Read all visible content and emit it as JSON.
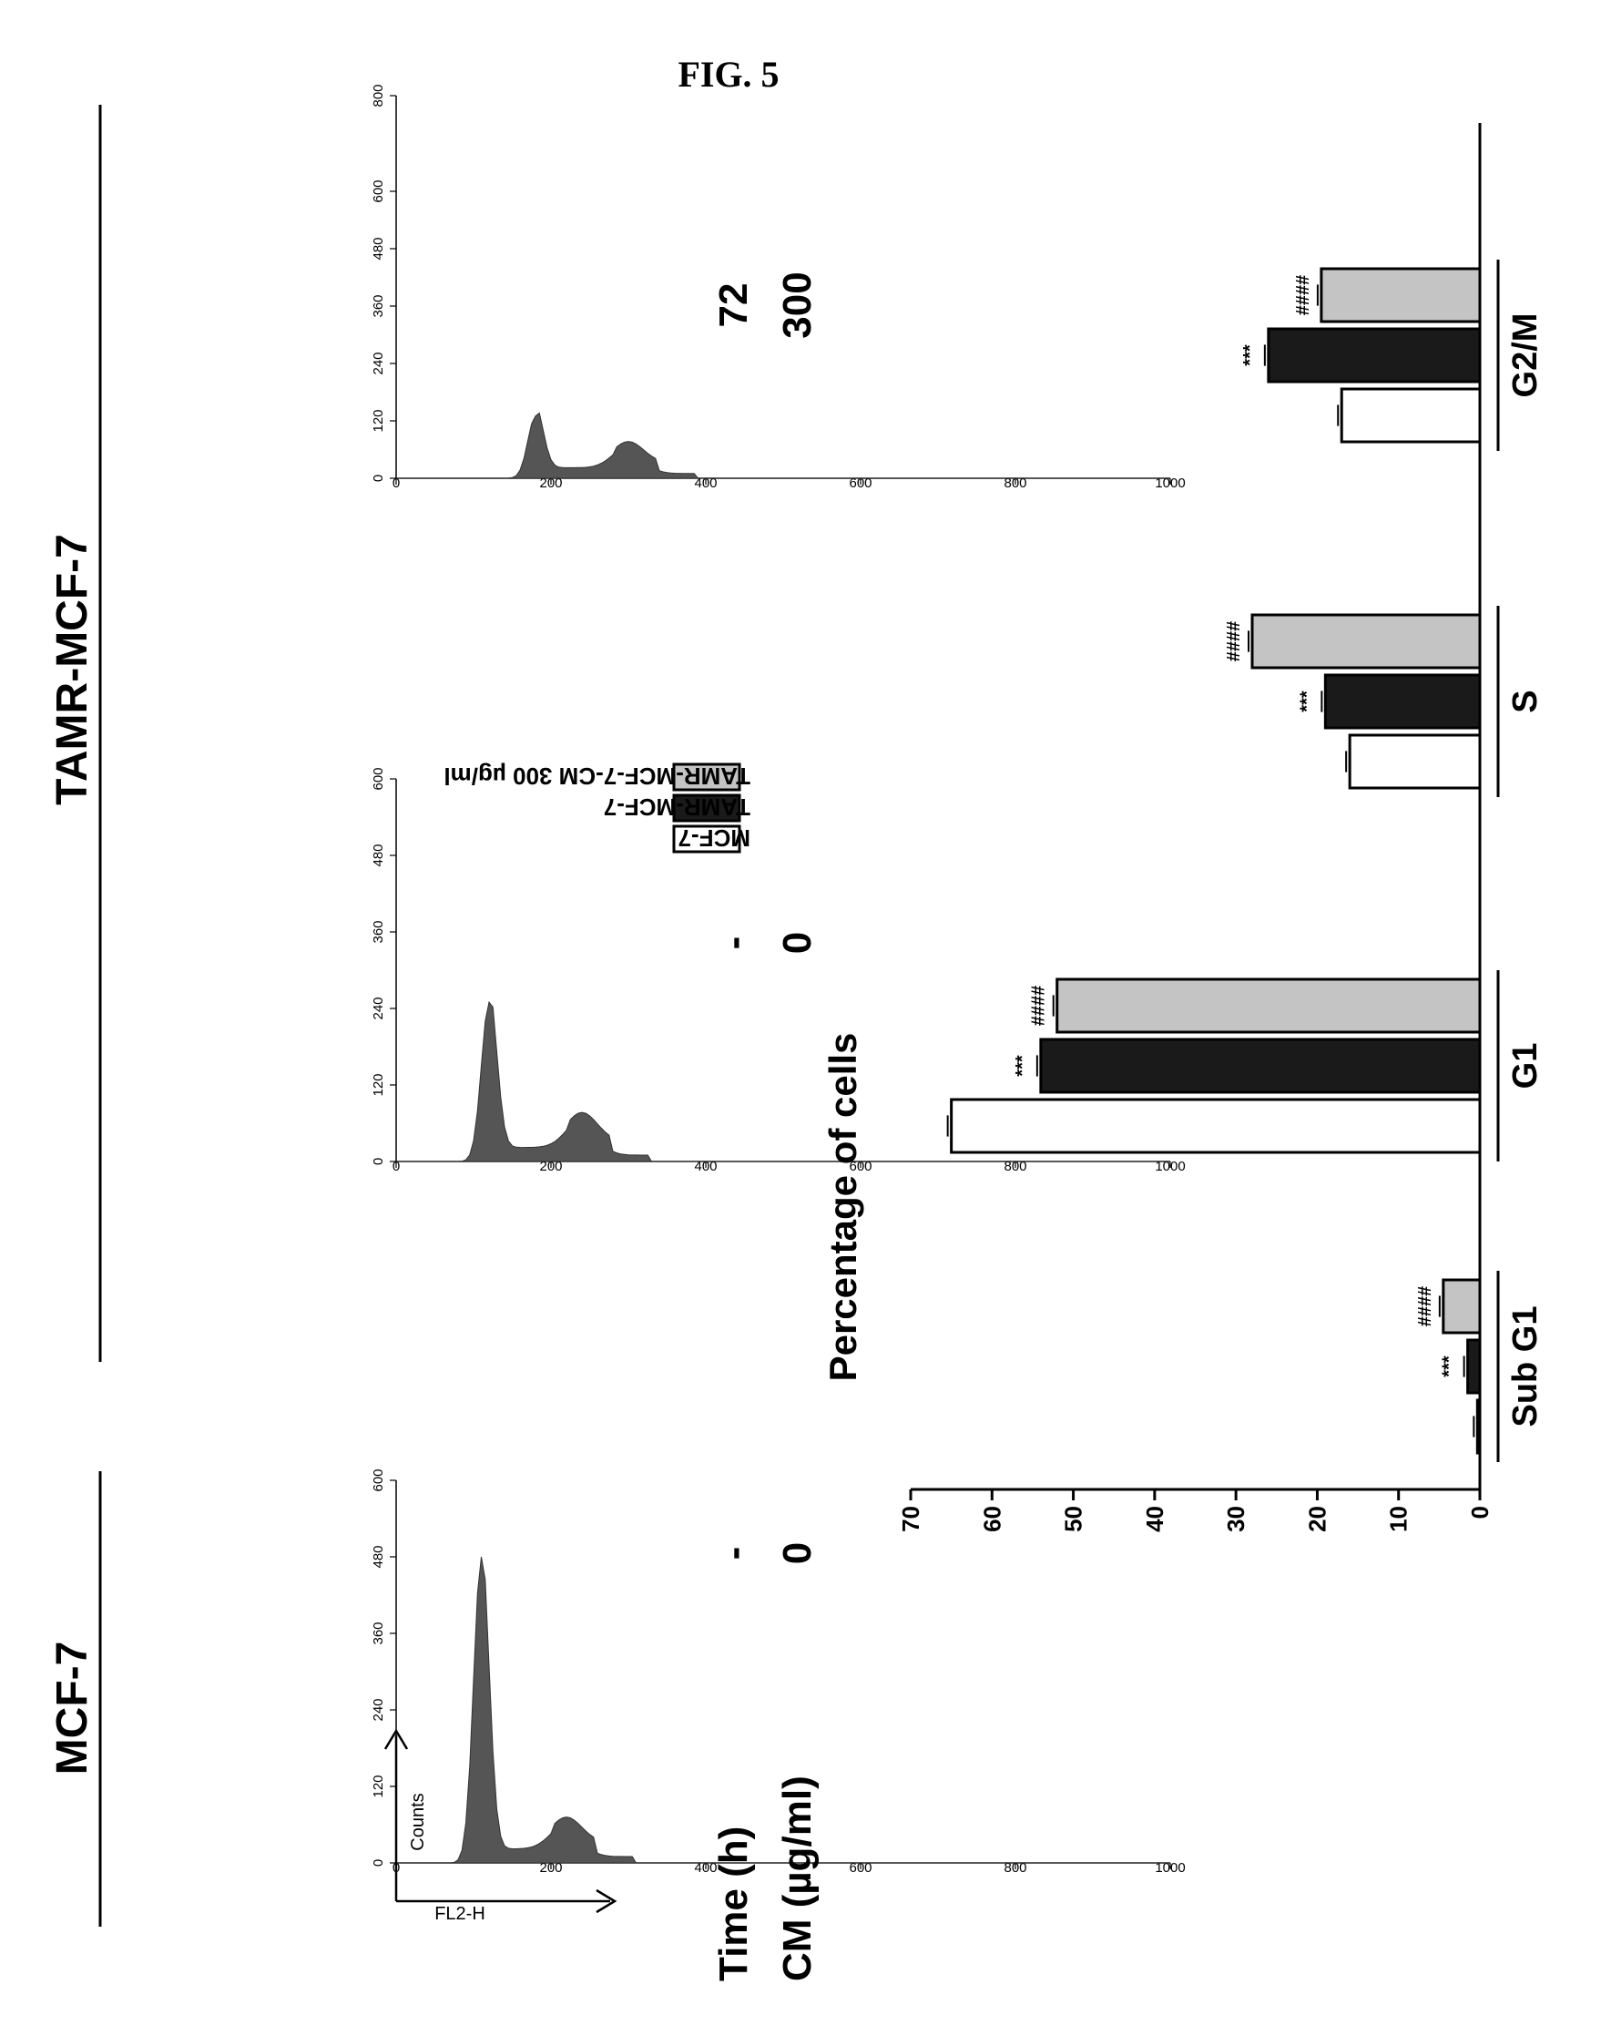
{
  "figure": {
    "title": "FIG. 5"
  },
  "groups": [
    {
      "label": "MCF-7"
    },
    {
      "label": "TAMR-MCF-7"
    }
  ],
  "conditions": {
    "time_label": "Time (h)",
    "cm_label": "CM (µg/ml)",
    "time_values": [
      "-",
      "-",
      "72"
    ],
    "cm_values": [
      "0",
      "0",
      "300"
    ]
  },
  "histograms": [
    {
      "name": "mcf7-0",
      "x_axis_label": "FL2-H",
      "y_axis_label": "Counts",
      "x_ticks": [
        0,
        200,
        400,
        600,
        800,
        1000
      ],
      "y_ticks": [
        0,
        120,
        240,
        360,
        480,
        600
      ],
      "xlim": [
        0,
        1000
      ],
      "ylim": [
        0,
        600
      ],
      "peak_x": 110,
      "peak_y": 480,
      "g2_x": 220,
      "g2_y": 40
    },
    {
      "name": "tamr-0",
      "x_ticks": [
        0,
        200,
        400,
        600,
        800,
        1000
      ],
      "y_ticks": [
        0,
        120,
        240,
        360,
        480,
        600
      ],
      "xlim": [
        0,
        1000
      ],
      "ylim": [
        0,
        600
      ],
      "peak_x": 120,
      "peak_y": 250,
      "g2_x": 240,
      "g2_y": 45
    },
    {
      "name": "tamr-cm300",
      "x_ticks": [
        0,
        200,
        400,
        600,
        800,
        1000
      ],
      "y_ticks": [
        0,
        120,
        240,
        360,
        480,
        600,
        800
      ],
      "xlim": [
        0,
        1000
      ],
      "ylim": [
        0,
        800
      ],
      "peak_x": 180,
      "peak_y": 130,
      "g2_x": 300,
      "g2_y": 45
    }
  ],
  "chart_data": {
    "type": "bar",
    "ylabel": "Percentage of cells",
    "ylim": [
      0,
      70
    ],
    "yticks": [
      0,
      10,
      20,
      30,
      40,
      50,
      60,
      70
    ],
    "categories": [
      "Sub G1",
      "G1",
      "S",
      "G2/M"
    ],
    "series": [
      {
        "name": "MCF-7",
        "values": [
          0.3,
          65,
          16,
          17
        ],
        "fill": "#ffffff"
      },
      {
        "name": "TAMR-MCF-7",
        "values": [
          1.5,
          54,
          19,
          26
        ],
        "fill": "#1a1a1a"
      },
      {
        "name": "TAMR-MCF-7-CM 300 µg/ml",
        "values": [
          4.5,
          52,
          28,
          19.5
        ],
        "fill": "#c4c4c4"
      }
    ],
    "annotations": [
      {
        "category": 0,
        "series": 1,
        "text": "***"
      },
      {
        "category": 0,
        "series": 2,
        "text": "####"
      },
      {
        "category": 1,
        "series": 1,
        "text": "***"
      },
      {
        "category": 1,
        "series": 2,
        "text": "####"
      },
      {
        "category": 2,
        "series": 1,
        "text": "***"
      },
      {
        "category": 2,
        "series": 2,
        "text": "####"
      },
      {
        "category": 3,
        "series": 1,
        "text": "***"
      },
      {
        "category": 3,
        "series": 2,
        "text": "####"
      }
    ],
    "legend_position": "top"
  }
}
